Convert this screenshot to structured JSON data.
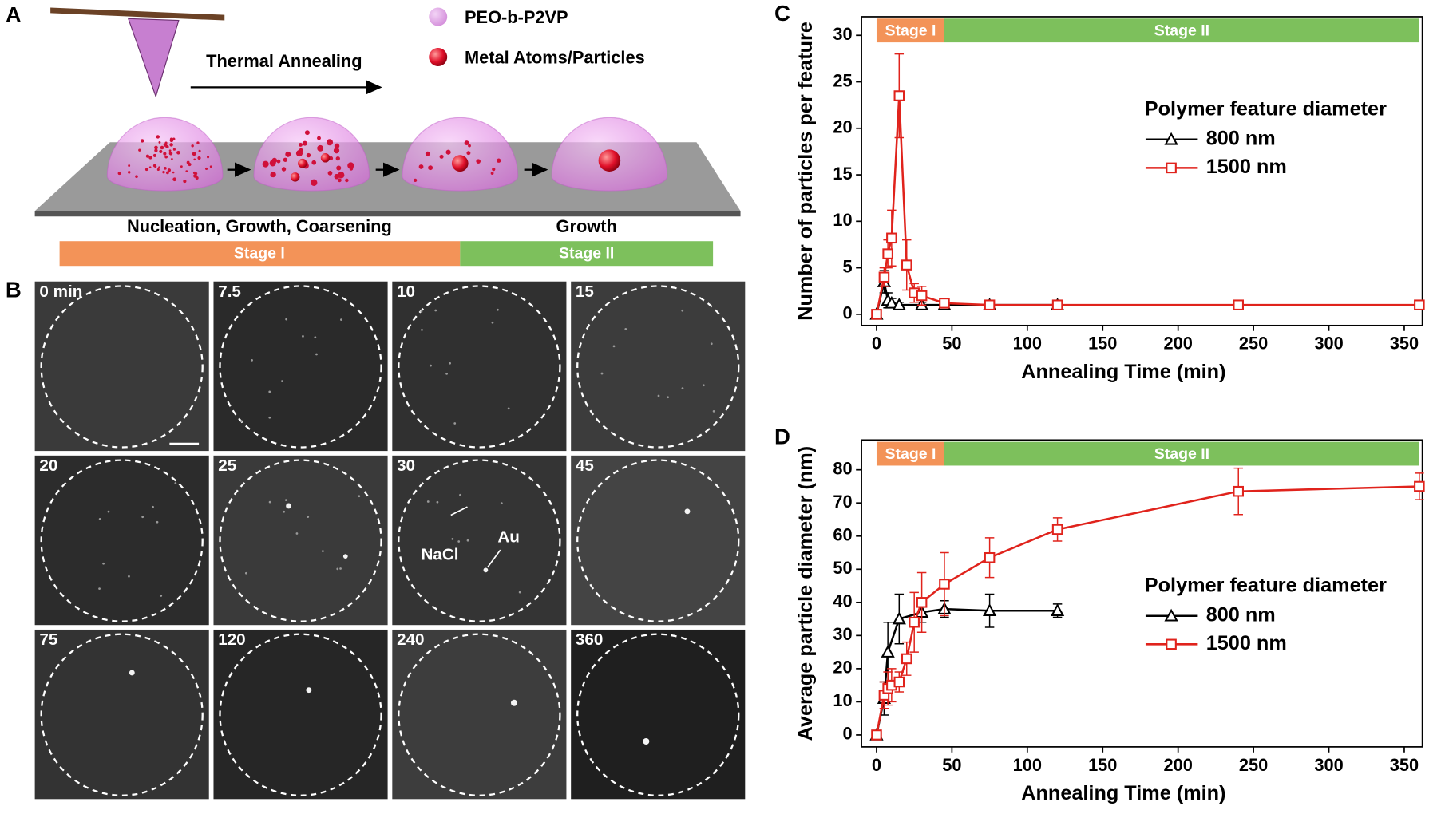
{
  "panel_a": {
    "label": "A",
    "legend": [
      "PEO-b-P2VP",
      "Metal Atoms/Particles"
    ],
    "arrow_label": "Thermal Annealing",
    "captions": [
      "Nucleation, Growth, Coarsening",
      "Growth"
    ],
    "stages": [
      "Stage I",
      "Stage II"
    ]
  },
  "panel_b": {
    "label": "B",
    "images": [
      "0 min",
      "7.5",
      "10",
      "15",
      "20",
      "25",
      "30",
      "45",
      "75",
      "120",
      "240",
      "360"
    ],
    "annotations": [
      "NaCl",
      "Au"
    ]
  },
  "chart_data": [
    {
      "type": "line",
      "panel": "C",
      "xlabel": "Annealing Time (min)",
      "ylabel": "Number of particles per feature",
      "xlim": [
        -10,
        362
      ],
      "ylim": [
        -1.2,
        32
      ],
      "xticks": [
        0,
        50,
        100,
        150,
        200,
        250,
        300,
        350
      ],
      "yticks": [
        0,
        5,
        10,
        15,
        20,
        25,
        30
      ],
      "stages": [
        {
          "name": "Stage I",
          "start": 0,
          "end": 45,
          "color": "#f39358"
        },
        {
          "name": "Stage II",
          "start": 45,
          "end": 360,
          "color": "#7dc05c"
        }
      ],
      "legend_title": "Polymer feature diameter",
      "series": [
        {
          "name": "800 nm",
          "color": "#000000",
          "marker": "triangle",
          "x": [
            0,
            5,
            7.5,
            10,
            15,
            30,
            45,
            75,
            120
          ],
          "values": [
            0,
            3.5,
            1.5,
            1.2,
            1,
            1,
            1,
            1,
            1
          ],
          "errors": [
            0,
            1.2,
            0.8,
            0.5,
            0.3,
            0.3,
            0.2,
            0.2,
            0.2
          ]
        },
        {
          "name": "1500 nm",
          "color": "#e0231c",
          "marker": "square",
          "x": [
            0,
            5,
            7.5,
            10,
            15,
            20,
            25,
            30,
            45,
            75,
            120,
            240,
            360
          ],
          "values": [
            0,
            4,
            6.5,
            8.2,
            23.5,
            5.3,
            2.3,
            2,
            1.2,
            1,
            1,
            1,
            1
          ],
          "errors": [
            0,
            1,
            1.5,
            3,
            4.5,
            2.7,
            1,
            1,
            0.5,
            0.3,
            0.3,
            0.2,
            0.2
          ]
        }
      ]
    },
    {
      "type": "line",
      "panel": "D",
      "xlabel": "Annealing Time (min)",
      "ylabel": "Average particle diameter (nm)",
      "xlim": [
        -10,
        362
      ],
      "ylim": [
        -3.6,
        89
      ],
      "xticks": [
        0,
        50,
        100,
        150,
        200,
        250,
        300,
        350
      ],
      "yticks": [
        0,
        10,
        20,
        30,
        40,
        50,
        60,
        70,
        80
      ],
      "stages": [
        {
          "name": "Stage I",
          "start": 0,
          "end": 45,
          "color": "#f39358"
        },
        {
          "name": "Stage II",
          "start": 45,
          "end": 360,
          "color": "#7dc05c"
        }
      ],
      "legend_title": "Polymer feature diameter",
      "series": [
        {
          "name": "800 nm",
          "color": "#000000",
          "marker": "triangle",
          "x": [
            0,
            5,
            7.5,
            15,
            30,
            45,
            75,
            120
          ],
          "values": [
            0,
            11,
            25,
            35,
            37,
            38,
            37.5,
            37.5
          ],
          "errors": [
            0,
            5,
            9,
            7.5,
            3,
            2.5,
            5,
            2
          ]
        },
        {
          "name": "1500 nm",
          "color": "#e0231c",
          "marker": "square",
          "x": [
            0,
            5,
            7.5,
            10,
            15,
            20,
            25,
            30,
            45,
            75,
            120,
            240,
            360
          ],
          "values": [
            0,
            12,
            14,
            15,
            16,
            23,
            34,
            40,
            45.5,
            53.5,
            62,
            73.5,
            75
          ],
          "errors": [
            0,
            4,
            5,
            5,
            3,
            5,
            9,
            9,
            9.5,
            6,
            3.5,
            7,
            4
          ]
        }
      ]
    }
  ]
}
